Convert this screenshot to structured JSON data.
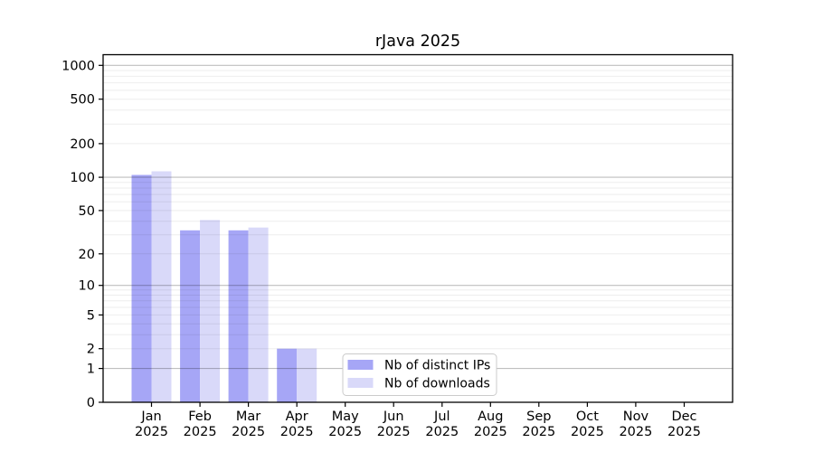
{
  "chart_data": {
    "type": "bar",
    "title": "rJava 2025",
    "xlabel": "",
    "ylabel": "",
    "year_label": "2025",
    "categories": [
      "Jan",
      "Feb",
      "Mar",
      "Apr",
      "May",
      "Jun",
      "Jul",
      "Aug",
      "Sep",
      "Oct",
      "Nov",
      "Dec"
    ],
    "series": [
      {
        "name": "Nb of distinct IPs",
        "color": "#a6a6f6",
        "values": [
          105,
          33,
          33,
          2,
          0,
          0,
          0,
          0,
          0,
          0,
          0,
          0
        ]
      },
      {
        "name": "Nb of downloads",
        "color": "#d9d9f9",
        "values": [
          113,
          41,
          35,
          2,
          0,
          0,
          0,
          0,
          0,
          0,
          0,
          0
        ]
      }
    ],
    "y_axis": {
      "scale": "log1p",
      "ticks": [
        0,
        1,
        2,
        5,
        10,
        20,
        50,
        100,
        200,
        500,
        1000
      ],
      "major_gridlines": [
        1,
        10,
        100,
        1000
      ],
      "minor_gridlines": [
        2,
        3,
        4,
        5,
        6,
        7,
        8,
        9,
        20,
        30,
        40,
        50,
        60,
        70,
        80,
        90,
        200,
        300,
        400,
        500,
        600,
        700,
        800,
        900
      ],
      "ylim": [
        0,
        1300
      ]
    },
    "legend": {
      "entries": [
        "Nb of distinct IPs",
        "Nb of downloads"
      ],
      "position": "lower-center"
    },
    "grid": true,
    "colors": {
      "major_grid": "rgba(0,0,0,0.25)",
      "minor_grid": "rgba(0,0,0,0.07)",
      "spine": "#000000",
      "background": "#ffffff",
      "legend_border": "#cbcbcb"
    }
  }
}
